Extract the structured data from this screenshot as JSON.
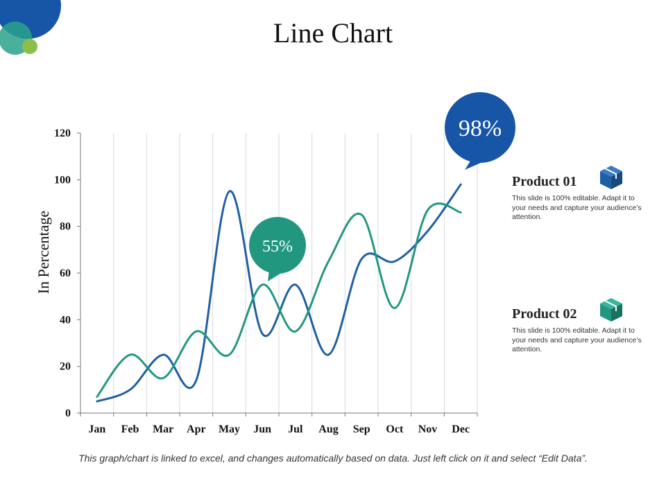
{
  "page": {
    "title": "Line Chart",
    "footer": "This graph/chart is linked to excel, and changes automatically based on data. Just left click on it and select “Edit Data”."
  },
  "colors": {
    "product01": "#1f5fa3",
    "product02": "#22977f",
    "deco_blue": "#1755a6",
    "deco_teal": "#2aa28a",
    "deco_green": "#8cbf4a",
    "grid": "#d9d9d9"
  },
  "callouts": {
    "peak": "98%",
    "mid": "55%"
  },
  "legend": [
    {
      "title": "Product 01",
      "desc": "This slide is 100% editable. Adapt it to your needs and capture your audience’s attention.",
      "icon": "box-icon"
    },
    {
      "title": "Product 02",
      "desc": "This slide is 100% editable. Adapt it to your needs and capture your audience’s attention.",
      "icon": "box-icon"
    }
  ],
  "chart_data": {
    "type": "line",
    "title": "Line Chart",
    "xlabel": "",
    "ylabel": "In Percentage",
    "ylim": [
      0,
      120
    ],
    "yticks": [
      0,
      20,
      40,
      60,
      80,
      100,
      120
    ],
    "grid": "vertical",
    "legend_position": "right",
    "categories": [
      "Jan",
      "Feb",
      "Mar",
      "Apr",
      "May",
      "Jun",
      "Jul",
      "Aug",
      "Sep",
      "Oct",
      "Nov",
      "Dec"
    ],
    "series": [
      {
        "name": "Product 01",
        "color": "#1f5fa3",
        "values": [
          5,
          10,
          25,
          14,
          95,
          34,
          55,
          25,
          66,
          65,
          78,
          98
        ]
      },
      {
        "name": "Product 02",
        "color": "#22977f",
        "values": [
          7,
          25,
          15,
          35,
          25,
          55,
          35,
          65,
          85,
          45,
          87,
          86
        ]
      }
    ]
  }
}
